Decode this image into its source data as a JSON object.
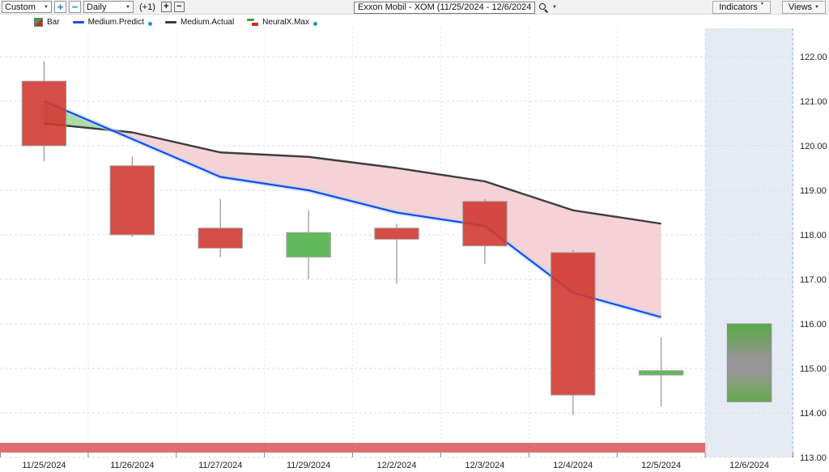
{
  "toolbar": {
    "range_select": "Custom",
    "interval_select": "Daily",
    "bar_offset": "(+1)",
    "plus": "+",
    "minus": "−",
    "caret": "▼",
    "search_value": "Exxon Mobil - XOM (11/25/2024 - 12/6/2024)",
    "indicators_button": "Indicators",
    "views_button": "Views"
  },
  "legend": {
    "items": [
      {
        "label": "Bar"
      },
      {
        "label": "Medium.Predict",
        "badge": true
      },
      {
        "label": "Medium.Actual",
        "badge": false
      },
      {
        "label": "NeuralX.Max",
        "badge": true
      }
    ]
  },
  "chart_data": {
    "type": "candlestick",
    "title": "Exxon Mobil - XOM (11/25/2024 - 12/6/2024)",
    "dates": [
      "11/25/2024",
      "11/26/2024",
      "11/27/2024",
      "11/29/2024",
      "12/2/2024",
      "12/3/2024",
      "12/4/2024",
      "12/5/2024",
      "12/6/2024"
    ],
    "y_axis": {
      "min": 113,
      "max": 122,
      "step": 1,
      "labels": [
        "122.00",
        "121.00",
        "120.00",
        "119.00",
        "118.00",
        "117.00",
        "116.00",
        "115.00",
        "114.00",
        "113.00"
      ]
    },
    "candles": [
      {
        "date": "11/25/2024",
        "open": 121.45,
        "high": 121.9,
        "low": 119.65,
        "close": 120.0,
        "direction": "down"
      },
      {
        "date": "11/26/2024",
        "open": 119.55,
        "high": 119.75,
        "low": 117.95,
        "close": 118.0,
        "direction": "down"
      },
      {
        "date": "11/27/2024",
        "open": 118.15,
        "high": 118.8,
        "low": 117.5,
        "close": 117.7,
        "direction": "down"
      },
      {
        "date": "11/29/2024",
        "open": 117.5,
        "high": 118.55,
        "low": 117.0,
        "close": 118.05,
        "direction": "up"
      },
      {
        "date": "12/2/2024",
        "open": 118.15,
        "high": 118.25,
        "low": 116.9,
        "close": 117.9,
        "direction": "down"
      },
      {
        "date": "12/3/2024",
        "open": 118.75,
        "high": 118.8,
        "low": 117.35,
        "close": 117.75,
        "direction": "down"
      },
      {
        "date": "12/4/2024",
        "open": 117.6,
        "high": 117.65,
        "low": 113.95,
        "close": 114.4,
        "direction": "down"
      },
      {
        "date": "12/5/2024",
        "open": 114.85,
        "high": 115.7,
        "low": 114.15,
        "close": 114.95,
        "direction": "up"
      }
    ],
    "series": [
      {
        "name": "Medium.Predict",
        "color": "#2148e8",
        "values": [
          121.0,
          120.15,
          119.3,
          119.0,
          118.5,
          118.2,
          116.7,
          116.15
        ]
      },
      {
        "name": "Medium.Actual",
        "color": "#3d3d3d",
        "values": [
          120.5,
          120.3,
          119.85,
          119.75,
          119.5,
          119.2,
          118.55,
          118.25
        ]
      }
    ],
    "band_fill": {
      "predict_above": "#a5d79d",
      "actual_above": "#f3cdd0"
    },
    "forecast": {
      "name": "NeuralX.Max",
      "date": "12/6/2024",
      "high": 116.0,
      "low": 114.25,
      "colors": {
        "green": "#58a949",
        "gray": "#969696"
      },
      "region_color": "#e9eef6"
    },
    "bottom_band": {
      "color": "#df6f6f",
      "from_date": "11/25/2024",
      "to_date": "12/5/2024"
    },
    "candle_colors": {
      "up": "#52b24b",
      "down": "#d23a32",
      "border": "#999999",
      "wick": "#8f8f8f"
    }
  }
}
